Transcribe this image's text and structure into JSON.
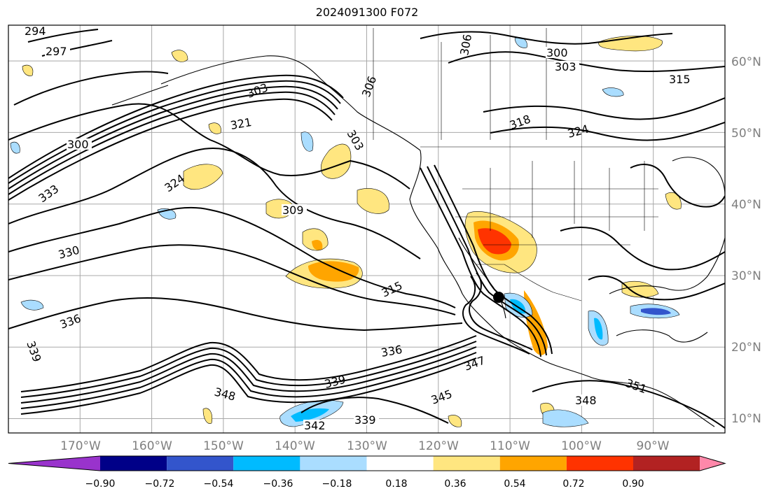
{
  "title": "2024091300 F072",
  "map": {
    "lon_range": [
      -180,
      -80
    ],
    "lat_range": [
      8,
      65
    ],
    "lon_ticks": [
      "170°W",
      "160°W",
      "150°W",
      "140°W",
      "130°W",
      "120°W",
      "110°W",
      "100°W",
      "90°W"
    ],
    "lat_ticks": [
      "60°N",
      "50°N",
      "40°N",
      "30°N",
      "20°N",
      "10°N"
    ],
    "contour_labels": [
      "294",
      "297",
      "300",
      "303",
      "306",
      "309",
      "315",
      "318",
      "321",
      "324",
      "330",
      "333",
      "336",
      "339",
      "342",
      "345",
      "347",
      "348",
      "351"
    ]
  },
  "colorbar": {
    "colors": [
      "#9933cc",
      "#000088",
      "#3355cc",
      "#00bbff",
      "#aaddff",
      "#ffffff",
      "#ffe680",
      "#ffa500",
      "#ff3300",
      "#b22222",
      "#ff88aa"
    ],
    "tick_labels": [
      "−0.90",
      "−0.72",
      "−0.54",
      "−0.36",
      "−0.18",
      "0.18",
      "0.36",
      "0.54",
      "0.72",
      "0.90"
    ]
  }
}
